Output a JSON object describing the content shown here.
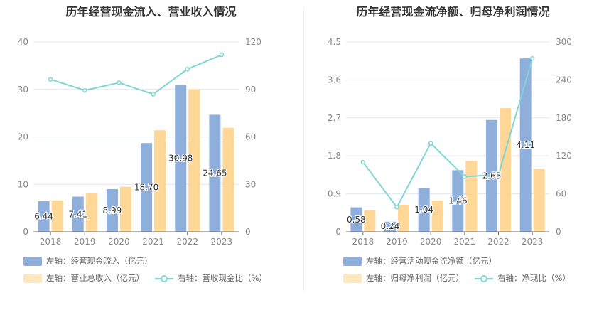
{
  "colors": {
    "bar1": "#8eaedb",
    "bar2": "#ffd796",
    "line": "#7fd6d6"
  },
  "chart_data": [
    {
      "type": "bar+line",
      "title": "历年经营现金流入、营业收入情况",
      "categories": [
        "2018",
        "2019",
        "2020",
        "2021",
        "2022",
        "2023"
      ],
      "left_axis": {
        "ylim": [
          0,
          40
        ],
        "ticks": [
          "0",
          "10",
          "20",
          "30",
          "40"
        ]
      },
      "right_axis": {
        "ylim": [
          0,
          120
        ],
        "ticks": [
          "0",
          "30",
          "60",
          "90",
          "120"
        ]
      },
      "series": [
        {
          "name": "左轴：经营现金流入（亿元）",
          "type": "bar",
          "axis": "left",
          "values": [
            6.44,
            7.41,
            8.99,
            18.7,
            30.98,
            24.65
          ],
          "labels": [
            "6.44",
            "7.41",
            "8.99",
            "18.70",
            "30.98",
            "24.65"
          ]
        },
        {
          "name": "左轴：营业总收入（亿元）",
          "type": "bar",
          "axis": "left",
          "values": [
            6.6,
            8.2,
            9.5,
            21.4,
            30.0,
            21.9
          ]
        },
        {
          "name": "右轴：营收现金比（%）",
          "type": "line",
          "axis": "right",
          "values": [
            96.3,
            89.4,
            94.2,
            87.0,
            102.8,
            111.9
          ]
        }
      ],
      "grid": true,
      "legend": "bottom-left"
    },
    {
      "type": "bar+line",
      "title": "历年经营现金流净额、归母净利润情况",
      "categories": [
        "2018",
        "2019",
        "2020",
        "2021",
        "2022",
        "2023"
      ],
      "left_axis": {
        "ylim": [
          0,
          4.5
        ],
        "ticks": [
          "0",
          "0.9",
          "1.8",
          "2.7",
          "3.6",
          "4.5"
        ]
      },
      "right_axis": {
        "ylim": [
          0,
          300
        ],
        "ticks": [
          "0",
          "60",
          "120",
          "180",
          "240",
          "300"
        ]
      },
      "series": [
        {
          "name": "左轴：经营活动现金流净额（亿元）",
          "type": "bar",
          "axis": "left",
          "values": [
            0.58,
            0.24,
            1.04,
            1.46,
            2.65,
            4.11
          ],
          "labels": [
            "0.58",
            "0.24",
            "1.04",
            "1.46",
            "2.65",
            "4.11"
          ]
        },
        {
          "name": "左轴：归母净利润（亿元）",
          "type": "bar",
          "axis": "left",
          "values": [
            0.52,
            0.64,
            0.74,
            1.68,
            2.93,
            1.5
          ]
        },
        {
          "name": "右轴：净现比（%）",
          "type": "line",
          "axis": "right",
          "values": [
            110,
            38.9,
            139.9,
            87.2,
            90.1,
            274
          ]
        }
      ],
      "grid": true,
      "legend": "bottom-left"
    }
  ]
}
